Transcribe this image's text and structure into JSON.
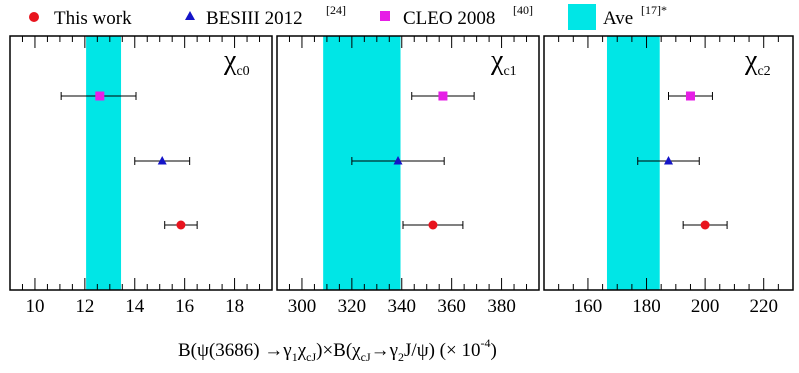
{
  "legend": {
    "this_work": "This work",
    "besiii": "BESIII 2012",
    "besiii_ref": "[24]",
    "cleo": "CLEO 2008",
    "cleo_ref": "[40]",
    "ave": "Ave",
    "ave_ref": "[17]*"
  },
  "xlabel": {
    "p1": "B(ψ(3686) →γ",
    "s1": "1",
    "p2": "χ",
    "s2": "cJ",
    "p3": ")×B(χ",
    "s3": "cJ",
    "p4": "→γ",
    "s4": "2",
    "p5": "J/ψ) (× 10",
    "sup": "-4",
    "p6": ")"
  },
  "colors": {
    "this_work": "#e8141e",
    "besiii": "#1414c8",
    "cleo": "#e61ee6",
    "ave_band": "#00e6e6",
    "frame": "#000000"
  },
  "chart_data": [
    {
      "type": "scatter",
      "panel_symbol": "χ",
      "panel_subscript": "c0",
      "xlim": [
        9,
        19.5
      ],
      "xticks": [
        10,
        12,
        14,
        16,
        18
      ],
      "band": [
        12.05,
        13.45
      ],
      "series": [
        {
          "name": "CLEO 2008",
          "marker": "square",
          "value": 12.6,
          "err_low": 1.55,
          "err_high": 1.45
        },
        {
          "name": "BESIII 2012",
          "marker": "triangle",
          "value": 15.1,
          "err_low": 1.1,
          "err_high": 1.1
        },
        {
          "name": "This work",
          "marker": "circle",
          "value": 15.85,
          "err_low": 0.65,
          "err_high": 0.65
        }
      ]
    },
    {
      "type": "scatter",
      "panel_symbol": "χ",
      "panel_subscript": "c1",
      "xlim": [
        290,
        395
      ],
      "xticks": [
        300,
        320,
        340,
        360,
        380
      ],
      "band": [
        308.5,
        339.5
      ],
      "series": [
        {
          "name": "CLEO 2008",
          "marker": "square",
          "value": 356.5,
          "err_low": 12.5,
          "err_high": 12.5
        },
        {
          "name": "BESIII 2012",
          "marker": "triangle",
          "value": 338.5,
          "err_low": 18.5,
          "err_high": 18.5
        },
        {
          "name": "This work",
          "marker": "circle",
          "value": 352.5,
          "err_low": 12.0,
          "err_high": 12.0
        }
      ]
    },
    {
      "type": "scatter",
      "panel_symbol": "χ",
      "panel_subscript": "c2",
      "xlim": [
        145,
        230
      ],
      "xticks": [
        160,
        180,
        200,
        220
      ],
      "band": [
        166.5,
        184.5
      ],
      "series": [
        {
          "name": "CLEO 2008",
          "marker": "square",
          "value": 195.0,
          "err_low": 7.5,
          "err_high": 7.5
        },
        {
          "name": "BESIII 2012",
          "marker": "triangle",
          "value": 187.5,
          "err_low": 10.5,
          "err_high": 10.5
        },
        {
          "name": "This work",
          "marker": "circle",
          "value": 200.0,
          "err_low": 7.5,
          "err_high": 7.5
        }
      ]
    }
  ]
}
